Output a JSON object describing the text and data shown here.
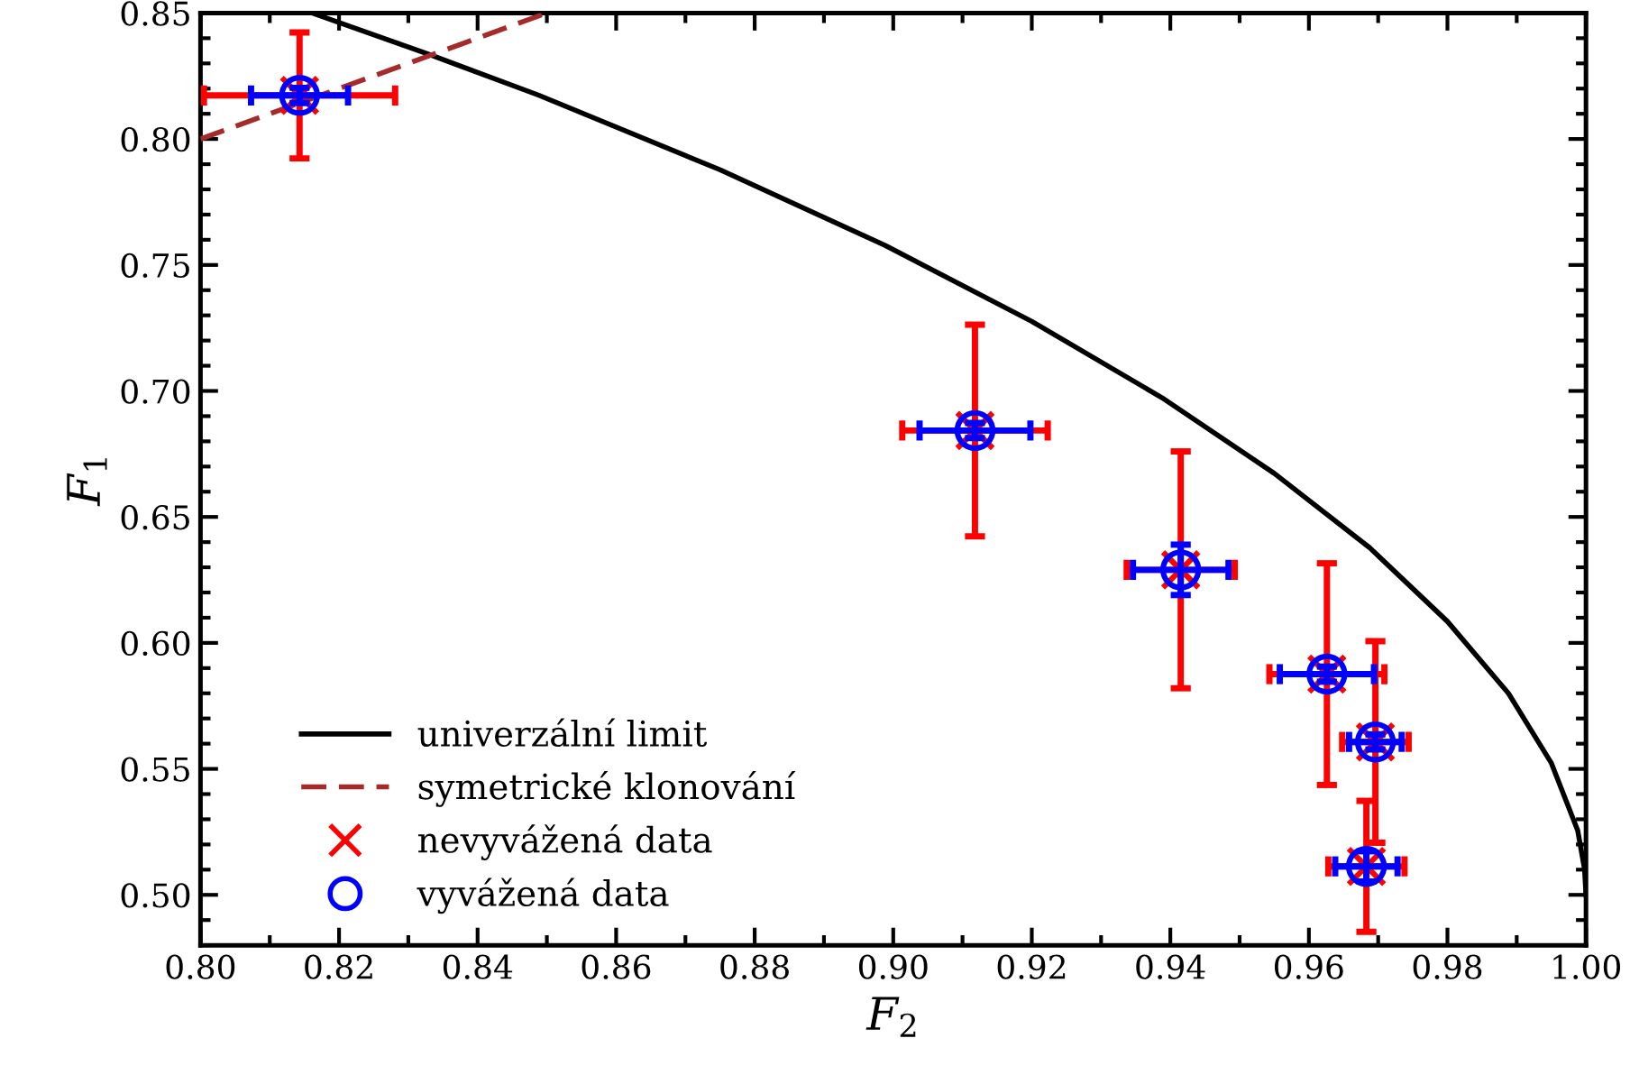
{
  "chart_data": {
    "type": "scatter",
    "xlabel": "F$_{2}$",
    "ylabel": "F$_{1}$",
    "xlim": [
      0.8,
      1.0
    ],
    "ylim": [
      0.48,
      0.85
    ],
    "xticks": [
      {
        "value": 0.8,
        "label": "0.80"
      },
      {
        "value": 0.82,
        "label": "0.82"
      },
      {
        "value": 0.84,
        "label": "0.84"
      },
      {
        "value": 0.86,
        "label": "0.86"
      },
      {
        "value": 0.88,
        "label": "0.88"
      },
      {
        "value": 0.9,
        "label": "0.90"
      },
      {
        "value": 0.92,
        "label": "0.92"
      },
      {
        "value": 0.94,
        "label": "0.94"
      },
      {
        "value": 0.96,
        "label": "0.96"
      },
      {
        "value": 0.98,
        "label": "0.98"
      },
      {
        "value": 1.0,
        "label": "1.00"
      }
    ],
    "yticks": [
      {
        "value": 0.5,
        "label": "0.50"
      },
      0.55,
      {
        "value": 0.6,
        "label": "0.60"
      },
      0.65,
      {
        "value": 0.7,
        "label": "0.70"
      },
      0.75,
      {
        "value": 0.8,
        "label": "0.80"
      },
      0.85
    ],
    "grid": false,
    "legend": "bottom left",
    "series": [
      {
        "name": "univerzální limit",
        "type": "line",
        "color": "#000000",
        "line_style": "solid",
        "marker": "none",
        "x": [
          0.8161,
          0.8333,
          0.8488,
          0.875,
          0.8988,
          0.92,
          0.9388,
          0.955,
          0.9688,
          0.98,
          0.9888,
          0.995,
          0.9988,
          0.9998,
          1.0
        ],
        "values": [
          0.85,
          0.8333,
          0.8174,
          0.7878,
          0.7578,
          0.7276,
          0.6973,
          0.6673,
          0.6377,
          0.6085,
          0.58,
          0.5523,
          0.5256,
          0.5101,
          0.5
        ]
      },
      {
        "name": "symetrické klonování",
        "type": "line",
        "color": "#a52a2a",
        "line_style": "dashed",
        "marker": "none",
        "x": [
          0.8,
          0.85
        ],
        "values": [
          0.8,
          0.85
        ]
      },
      {
        "name": "nevyvážená data",
        "type": "scatter",
        "color": "#ff0000",
        "marker": "cross",
        "x": [
          0.8143,
          0.9118,
          0.9415,
          0.9626,
          0.9696,
          0.9683
        ],
        "values": [
          0.8173,
          0.6843,
          0.629,
          0.5876,
          0.5607,
          0.5113
        ],
        "errors": [
          0.025,
          0.042,
          0.047,
          0.044,
          0.04,
          0.026
        ],
        "xerrors": [
          0.0138,
          0.0105,
          0.0078,
          0.0083,
          0.0048,
          0.0055
        ]
      },
      {
        "name": "vyvážená data",
        "type": "scatter",
        "color": "#0000ff",
        "marker": "circle",
        "x": [
          0.8143,
          0.9118,
          0.9415,
          0.9626,
          0.9696,
          0.9683
        ],
        "values": [
          0.8173,
          0.6843,
          0.629,
          0.5876,
          0.5607,
          0.5113
        ],
        "errors": [
          0.003,
          0.003,
          0.01,
          0.003,
          0.003,
          0.006
        ],
        "xerrors": [
          0.007,
          0.008,
          0.0069,
          0.0068,
          0.0038,
          0.0045
        ]
      }
    ]
  }
}
